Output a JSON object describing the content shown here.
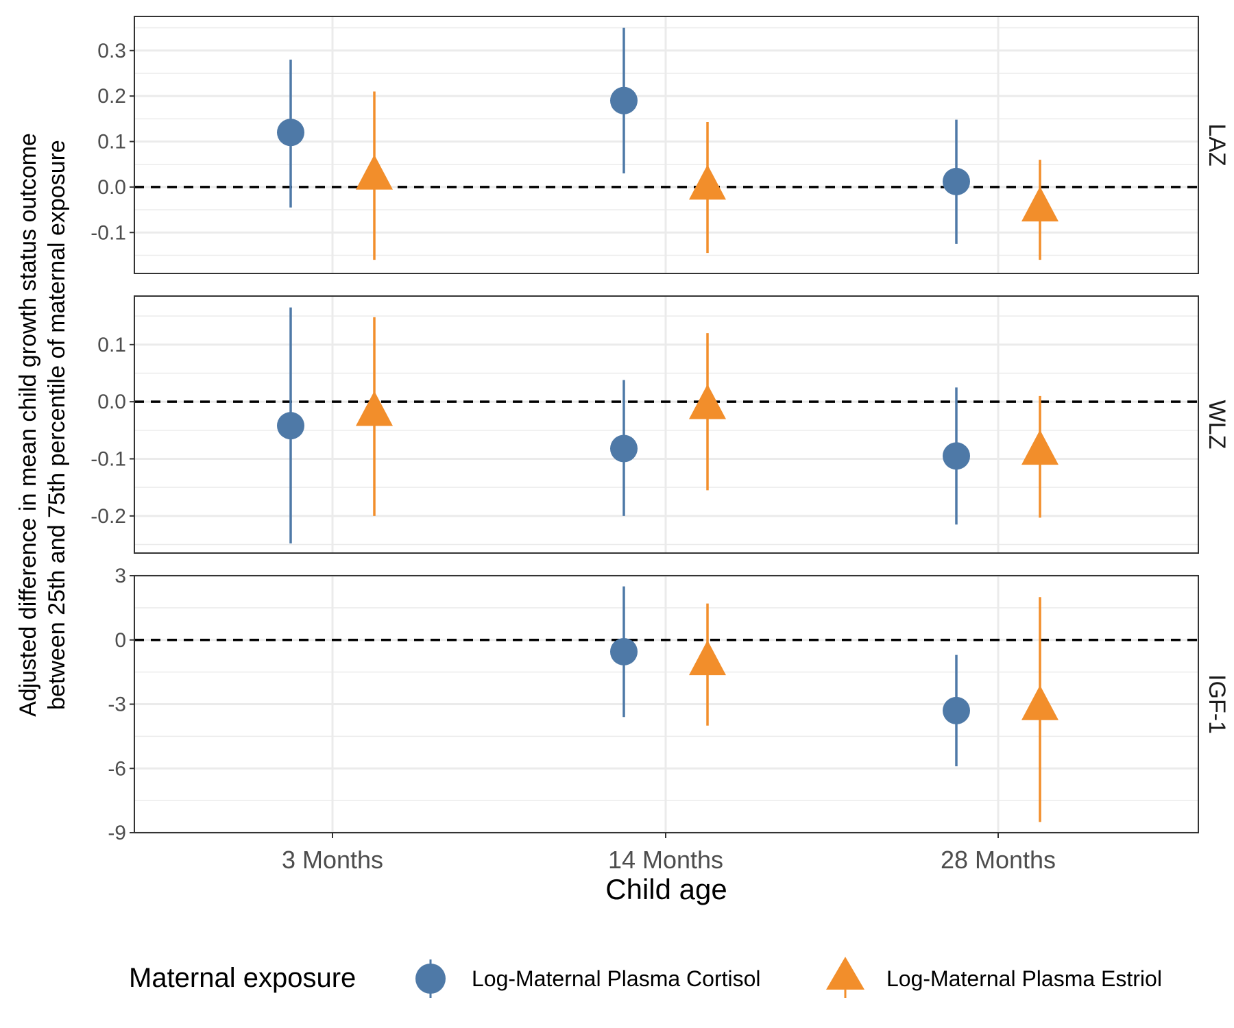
{
  "chart_data": {
    "type": "scatter",
    "x_label": "Child age",
    "y_label_line1": "Adjusted difference in mean child growth status outcome",
    "y_label_line2": "between 25th and 75th percentile of maternal exposure",
    "categories": [
      "3 Months",
      "14 Months",
      "28 Months"
    ],
    "legend": {
      "title": "Maternal exposure",
      "position": "bottom",
      "entries": [
        "Log-Maternal Plasma Cortisol",
        "Log-Maternal Plasma Estriol"
      ]
    },
    "reference_line": 0,
    "grid": true,
    "series_colors": {
      "Log-Maternal Plasma Cortisol": "#4E79A7",
      "Log-Maternal Plasma Estriol": "#F28E2B"
    },
    "series_shapes": {
      "Log-Maternal Plasma Cortisol": "circle",
      "Log-Maternal Plasma Estriol": "triangle"
    },
    "panels": [
      {
        "facet": "LAZ",
        "ylim": [
          -0.19,
          0.375
        ],
        "yticks": [
          -0.1,
          0.0,
          0.1,
          0.2,
          0.3
        ],
        "ytick_labels": [
          "-0.1",
          "0.0",
          "0.1",
          "0.2",
          "0.3"
        ],
        "series": [
          {
            "name": "Log-Maternal Plasma Cortisol",
            "points": [
              {
                "x": "3 Months",
                "y": 0.12,
                "lower": -0.045,
                "upper": 0.28
              },
              {
                "x": "14 Months",
                "y": 0.19,
                "lower": 0.03,
                "upper": 0.35
              },
              {
                "x": "28 Months",
                "y": 0.012,
                "lower": -0.125,
                "upper": 0.148
              }
            ]
          },
          {
            "name": "Log-Maternal Plasma Estriol",
            "points": [
              {
                "x": "3 Months",
                "y": 0.02,
                "lower": -0.16,
                "upper": 0.21
              },
              {
                "x": "14 Months",
                "y": -0.002,
                "lower": -0.145,
                "upper": 0.143
              },
              {
                "x": "28 Months",
                "y": -0.05,
                "lower": -0.16,
                "upper": 0.06
              }
            ]
          }
        ]
      },
      {
        "facet": "WLZ",
        "ylim": [
          -0.265,
          0.185
        ],
        "yticks": [
          -0.2,
          -0.1,
          0.0,
          0.1
        ],
        "ytick_labels": [
          "-0.2",
          "-0.1",
          "0.0",
          "0.1"
        ],
        "series": [
          {
            "name": "Log-Maternal Plasma Cortisol",
            "points": [
              {
                "x": "3 Months",
                "y": -0.042,
                "lower": -0.248,
                "upper": 0.165
              },
              {
                "x": "14 Months",
                "y": -0.082,
                "lower": -0.2,
                "upper": 0.038
              },
              {
                "x": "28 Months",
                "y": -0.095,
                "lower": -0.215,
                "upper": 0.025
              }
            ]
          },
          {
            "name": "Log-Maternal Plasma Estriol",
            "points": [
              {
                "x": "3 Months",
                "y": -0.022,
                "lower": -0.2,
                "upper": 0.148
              },
              {
                "x": "14 Months",
                "y": -0.01,
                "lower": -0.155,
                "upper": 0.12
              },
              {
                "x": "28 Months",
                "y": -0.09,
                "lower": -0.203,
                "upper": 0.01
              }
            ]
          }
        ]
      },
      {
        "facet": "IGF-1",
        "ylim": [
          -9.0,
          3.0
        ],
        "yticks": [
          -9,
          -6,
          -3,
          0,
          3
        ],
        "ytick_labels": [
          "-9",
          "-6",
          "-3",
          "0",
          "3"
        ],
        "series": [
          {
            "name": "Log-Maternal Plasma Cortisol",
            "points": [
              {
                "x": "14 Months",
                "y": -0.55,
                "lower": -3.6,
                "upper": 2.5
              },
              {
                "x": "28 Months",
                "y": -3.3,
                "lower": -5.9,
                "upper": -0.7
              }
            ]
          },
          {
            "name": "Log-Maternal Plasma Estriol",
            "points": [
              {
                "x": "14 Months",
                "y": -1.1,
                "lower": -4.0,
                "upper": 1.7
              },
              {
                "x": "28 Months",
                "y": -3.2,
                "lower": -8.5,
                "upper": 2.0
              }
            ]
          }
        ]
      }
    ]
  }
}
